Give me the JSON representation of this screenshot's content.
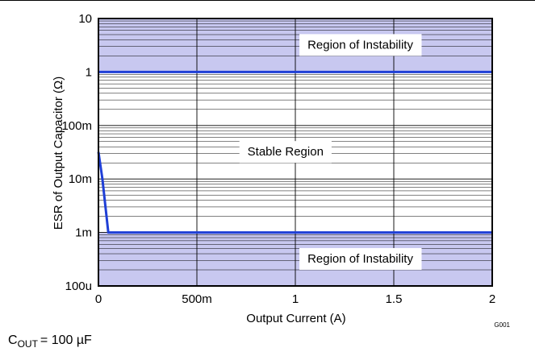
{
  "chart_data": {
    "type": "line",
    "title": "",
    "xlabel": "Output Current (A)",
    "ylabel": "ESR of Output Capacitor (Ω)",
    "xlim": [
      0,
      2
    ],
    "ylim": [
      0.0001,
      10
    ],
    "yscale": "log",
    "x_ticks": [
      {
        "value": 0,
        "label": "0"
      },
      {
        "value": 0.5,
        "label": "500m"
      },
      {
        "value": 1,
        "label": "1"
      },
      {
        "value": 1.5,
        "label": "1.5"
      },
      {
        "value": 2,
        "label": "2"
      }
    ],
    "y_ticks": [
      {
        "value": 0.0001,
        "label": "100u"
      },
      {
        "value": 0.001,
        "label": "1m"
      },
      {
        "value": 0.01,
        "label": "10m"
      },
      {
        "value": 0.1,
        "label": "100m"
      },
      {
        "value": 1,
        "label": "1"
      },
      {
        "value": 10,
        "label": "10"
      }
    ],
    "grid": true,
    "series": [
      {
        "role": "upper-boundary",
        "color": "#1f3fd6",
        "points": [
          [
            0,
            1
          ],
          [
            2,
            1
          ]
        ]
      },
      {
        "role": "lower-boundary",
        "color": "#1f3fd6",
        "points": [
          [
            0,
            0.032
          ],
          [
            0.02,
            0.01
          ],
          [
            0.05,
            0.001
          ],
          [
            2,
            0.001
          ]
        ]
      }
    ],
    "regions": [
      {
        "label": "Region of Instability",
        "y_range": [
          1,
          10
        ],
        "x": 1.33,
        "y": 3.2,
        "fill": "#c8c8f0"
      },
      {
        "label": "Stable Region",
        "y_range": [
          0.001,
          1
        ],
        "x": 0.95,
        "y": 0.032,
        "fill": "#ffffff"
      },
      {
        "label": "Region of Instability",
        "y_range": [
          0.0001,
          0.001
        ],
        "x": 1.33,
        "y": 0.00032,
        "fill": "#c8c8f0"
      }
    ],
    "colors": {
      "instability_fill": "#c8c8f0",
      "boundary_line": "#1f3fd6",
      "grid_line": "#000000"
    }
  },
  "figure_id": "G001",
  "condition": {
    "symbol": "C",
    "subscript": "OUT",
    "value": "= 100 µF"
  }
}
